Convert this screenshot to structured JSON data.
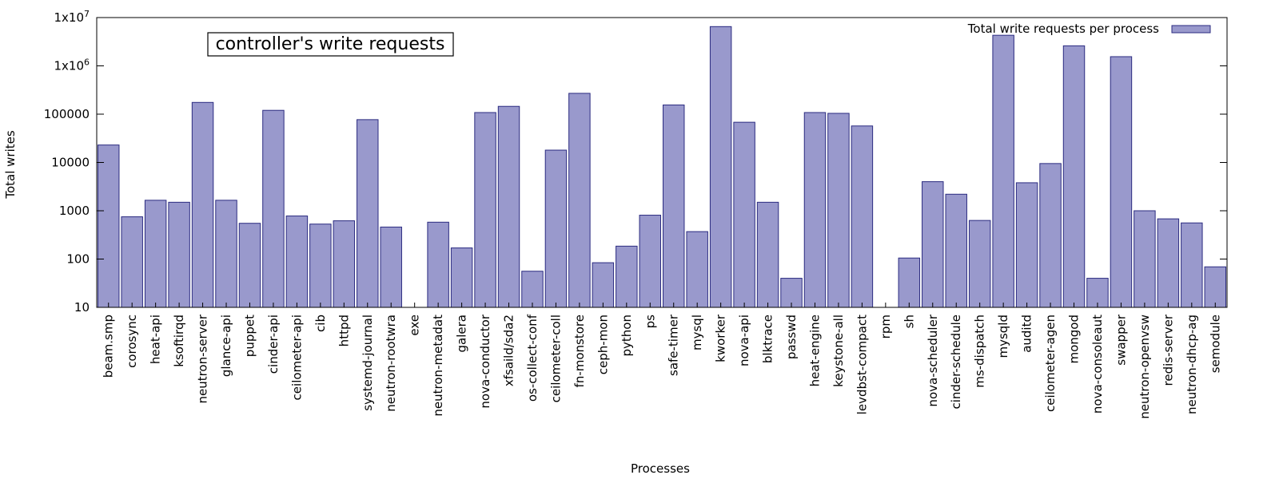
{
  "chart_data": {
    "type": "bar",
    "title": "controller's write requests",
    "xlabel": "Processes",
    "ylabel": "Total writes",
    "yscale": "log",
    "ylim": [
      10,
      10000000
    ],
    "yticks": [
      {
        "value": 10,
        "label": "10"
      },
      {
        "value": 100,
        "label": "100"
      },
      {
        "value": 1000,
        "label": "1000"
      },
      {
        "value": 10000,
        "label": "10000"
      },
      {
        "value": 100000,
        "label": "100000"
      },
      {
        "value": 1000000,
        "base": "1x10",
        "exp": "6"
      },
      {
        "value": 10000000,
        "base": "1x10",
        "exp": "7"
      }
    ],
    "legend": "top-right",
    "bar_color": "#9999cc",
    "bar_edge_color": "#2b2b80",
    "series": [
      {
        "name": "Total write requests per process"
      }
    ],
    "categories": [
      "beam.smp",
      "corosync",
      "heat-api",
      "ksoftirqd",
      "neutron-server",
      "glance-api",
      "puppet",
      "cinder-api",
      "ceilometer-api",
      "cib",
      "httpd",
      "systemd-journal",
      "neutron-rootwra",
      "exe",
      "neutron-metadat",
      "galera",
      "nova-conductor",
      "xfsaild/sda2",
      "os-collect-conf",
      "ceilometer-coll",
      "fn-monstore",
      "ceph-mon",
      "python",
      "ps",
      "safe-timer",
      "mysql",
      "kworker",
      "nova-api",
      "blktrace",
      "passwd",
      "heat-engine",
      "keystone-all",
      "levdbst-compact",
      "rpm",
      "sh",
      "nova-scheduler",
      "cinder-schedule",
      "ms-dispatch",
      "mysqld",
      "auditd",
      "ceilometer-agen",
      "mongod",
      "nova-consoleaut",
      "swapper",
      "neutron-openvsw",
      "redis-server",
      "neutron-dhcp-ag",
      "semodule"
    ],
    "values": [
      23000,
      750,
      1650,
      1500,
      175000,
      1650,
      550,
      120000,
      780,
      530,
      620,
      77000,
      460,
      10,
      580,
      170,
      108000,
      145000,
      56,
      18000,
      270000,
      84,
      185,
      810,
      155000,
      370,
      6500000,
      68000,
      1500,
      40,
      108000,
      104000,
      57000,
      10,
      105,
      4000,
      2200,
      630,
      4300000,
      3800,
      9500,
      2600000,
      40,
      1550000,
      1000,
      680,
      560,
      69
    ]
  }
}
